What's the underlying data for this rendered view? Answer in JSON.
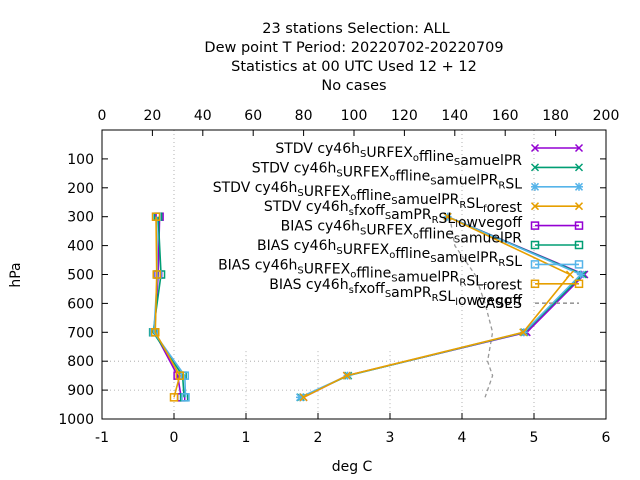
{
  "chart_data": {
    "type": "line",
    "title_lines": [
      "23 stations Selection: ALL",
      "Dew point T  Period: 20220702-20220709",
      "Statistics at 00 UTC  Used  12 + 12",
      "No cases"
    ],
    "xlabel": "deg C",
    "ylabel": "hPa",
    "xlim": [
      -1,
      6
    ],
    "ylim": [
      1000,
      0
    ],
    "x_ticks": [
      -1,
      0,
      1,
      2,
      3,
      4,
      5,
      6
    ],
    "y_ticks": [
      100,
      200,
      300,
      400,
      500,
      600,
      700,
      800,
      900,
      1000
    ],
    "x2lim": [
      0,
      200
    ],
    "x2_ticks": [
      0,
      20,
      40,
      60,
      80,
      100,
      120,
      140,
      160,
      180,
      200
    ],
    "y_inverted": true,
    "grid": "dotted, partial",
    "legend_position": "top-right",
    "series": [
      {
        "name": "STDV cy46h_S URFEX_o ffline_S amuelPR",
        "legend": [
          [
            "STDV cy46h",
            false
          ],
          [
            "S",
            true
          ],
          [
            "URFEX",
            false
          ],
          [
            "o",
            true
          ],
          [
            "ffline",
            false
          ],
          [
            "S",
            true
          ],
          [
            "amuelPR",
            false
          ]
        ],
        "color": "#9400d3",
        "marker": "x",
        "x": [
          3.8,
          5.7,
          4.9,
          2.4,
          1.8
        ],
        "y": [
          300,
          500,
          700,
          850,
          925
        ]
      },
      {
        "name": "STDV cy46h_S URFEX_o ffline_S amuelPR_R SL",
        "legend": [
          [
            "STDV cy46h",
            false
          ],
          [
            "S",
            true
          ],
          [
            "URFEX",
            false
          ],
          [
            "o",
            true
          ],
          [
            "ffline",
            false
          ],
          [
            "S",
            true
          ],
          [
            "amuelPR",
            false
          ],
          [
            "R",
            true
          ],
          [
            "SL",
            false
          ]
        ],
        "color": "#009e73",
        "marker": "x",
        "x": [
          3.8,
          5.68,
          4.87,
          2.42,
          1.76
        ],
        "y": [
          300,
          500,
          700,
          850,
          925
        ]
      },
      {
        "name": "STDV cy46h_S URFEX_o ffline_S amuelPR_R SL_f orest",
        "legend": [
          [
            "STDV cy46h",
            false
          ],
          [
            "S",
            true
          ],
          [
            "URFEX",
            false
          ],
          [
            "o",
            true
          ],
          [
            "ffline",
            false
          ],
          [
            "S",
            true
          ],
          [
            "amuelPR",
            false
          ],
          [
            "R",
            true
          ],
          [
            "SL",
            false
          ],
          [
            "f",
            true
          ],
          [
            "orest",
            false
          ]
        ],
        "color": "#56b4e9",
        "marker": "star",
        "x": [
          3.8,
          5.65,
          4.86,
          2.41,
          1.75
        ],
        "y": [
          300,
          500,
          700,
          850,
          925
        ]
      },
      {
        "name": "STDV cy46h_s fxoff_S amPR_R SL_l owvegoff",
        "legend": [
          [
            "STDV cy46h",
            false
          ],
          [
            "s",
            true
          ],
          [
            "fxoff",
            false
          ],
          [
            "S",
            true
          ],
          [
            "amPR",
            false
          ],
          [
            "R",
            true
          ],
          [
            "SL",
            false
          ],
          [
            "l",
            true
          ],
          [
            "owvegoff",
            false
          ]
        ],
        "color": "#e69f00",
        "marker": "x",
        "x": [
          3.8,
          5.5,
          4.85,
          2.4,
          1.8
        ],
        "y": [
          300,
          500,
          700,
          850,
          925
        ]
      },
      {
        "name": "BIAS cy46h_S URFEX_o ffline_S amuelPR",
        "legend": [
          [
            "BIAS cy46h",
            false
          ],
          [
            "S",
            true
          ],
          [
            "URFEX",
            false
          ],
          [
            "o",
            true
          ],
          [
            "ffline",
            false
          ],
          [
            "S",
            true
          ],
          [
            "amuelPR",
            false
          ]
        ],
        "color": "#9400d3",
        "marker": "square",
        "x": [
          -0.2,
          -0.22,
          -0.27,
          0.05,
          0.1
        ],
        "y": [
          300,
          500,
          700,
          850,
          925
        ]
      },
      {
        "name": "BIAS cy46h_S URFEX_o ffline_S amuelPR_R SL",
        "legend": [
          [
            "BIAS cy46h",
            false
          ],
          [
            "S",
            true
          ],
          [
            "URFEX",
            false
          ],
          [
            "o",
            true
          ],
          [
            "ffline",
            false
          ],
          [
            "S",
            true
          ],
          [
            "amuelPR",
            false
          ],
          [
            "R",
            true
          ],
          [
            "SL",
            false
          ]
        ],
        "color": "#009e73",
        "marker": "square",
        "x": [
          -0.22,
          -0.18,
          -0.29,
          0.12,
          0.14
        ],
        "y": [
          300,
          500,
          700,
          850,
          925
        ]
      },
      {
        "name": "BIAS cy46h_S URFEX_o ffline_S amuelPR_R SL_f orest",
        "legend": [
          [
            "BIAS cy46h",
            false
          ],
          [
            "S",
            true
          ],
          [
            "URFEX",
            false
          ],
          [
            "o",
            true
          ],
          [
            "ffline",
            false
          ],
          [
            "S",
            true
          ],
          [
            "amuelPR",
            false
          ],
          [
            "R",
            true
          ],
          [
            "SL",
            false
          ],
          [
            "f",
            true
          ],
          [
            "orest",
            false
          ]
        ],
        "color": "#56b4e9",
        "marker": "square",
        "x": [
          -0.24,
          -0.23,
          -0.28,
          0.15,
          0.16
        ],
        "y": [
          300,
          500,
          700,
          850,
          925
        ]
      },
      {
        "name": "BIAS cy46h_s fxoff_S amPR_R SL_l owvegoff",
        "legend": [
          [
            "BIAS cy46h",
            false
          ],
          [
            "s",
            true
          ],
          [
            "fxoff",
            false
          ],
          [
            "S",
            true
          ],
          [
            "amPR",
            false
          ],
          [
            "R",
            true
          ],
          [
            "SL",
            false
          ],
          [
            "l",
            true
          ],
          [
            "owvegoff",
            false
          ]
        ],
        "color": "#e69f00",
        "marker": "square",
        "x": [
          -0.25,
          -0.24,
          -0.26,
          0.08,
          0.0
        ],
        "y": [
          300,
          500,
          700,
          850,
          925
        ]
      },
      {
        "name": "CASES",
        "legend": [
          [
            "CASES",
            false
          ]
        ],
        "color": "#999999",
        "marker": "none",
        "dashed": true,
        "axis": "x2",
        "x": [
          138,
          140,
          148,
          152,
          155,
          153,
          155,
          153,
          152
        ],
        "y": [
          300,
          400,
          500,
          600,
          700,
          800,
          850,
          900,
          925
        ]
      }
    ]
  }
}
